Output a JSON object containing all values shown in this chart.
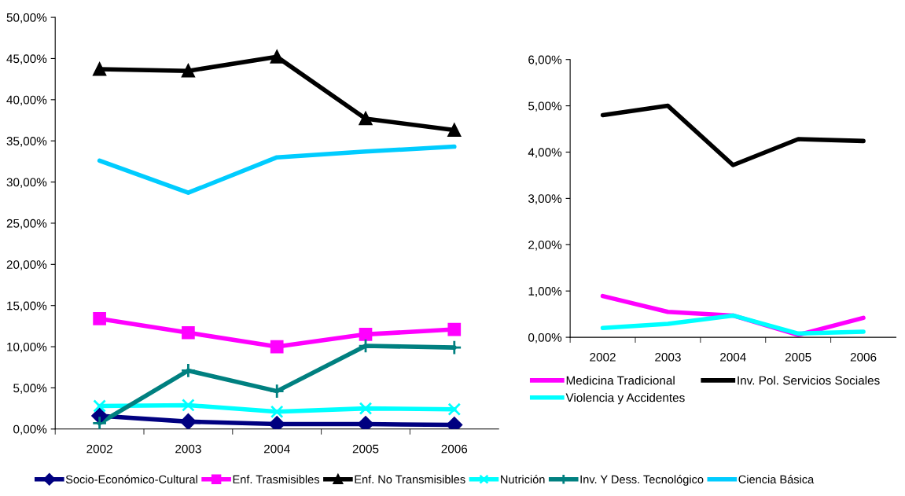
{
  "chart_data": [
    {
      "type": "line",
      "categories": [
        "2002",
        "2003",
        "2004",
        "2005",
        "2006"
      ],
      "ylim": [
        0,
        50
      ],
      "yticks": [
        {
          "value": 0,
          "label": "0,00%"
        },
        {
          "value": 5,
          "label": "5,00%"
        },
        {
          "value": 10,
          "label": "10,00%"
        },
        {
          "value": 15,
          "label": "15,00%"
        },
        {
          "value": 20,
          "label": "20,00%"
        },
        {
          "value": 25,
          "label": "25,00%"
        },
        {
          "value": 30,
          "label": "30,00%"
        },
        {
          "value": 35,
          "label": "35,00%"
        },
        {
          "value": 40,
          "label": "40,00%"
        },
        {
          "value": 45,
          "label": "45,00%"
        },
        {
          "value": 50,
          "label": "50,00%"
        }
      ],
      "grid": false,
      "legend": "bottom",
      "series": [
        {
          "name": "Socio-Económico-Cultural",
          "color": "#000080",
          "marker": "diamond",
          "values": [
            1.6,
            0.9,
            0.6,
            0.6,
            0.5
          ]
        },
        {
          "name": "Enf. Trasmisibles",
          "color": "#ff00ff",
          "marker": "square",
          "values": [
            13.4,
            11.7,
            10.0,
            11.5,
            12.1
          ]
        },
        {
          "name": "Enf. No Transmisibles",
          "color": "#000000",
          "marker": "triangle",
          "values": [
            43.7,
            43.5,
            45.2,
            37.7,
            36.3
          ]
        },
        {
          "name": "Nutrición",
          "color": "#00ffff",
          "marker": "cross",
          "values": [
            2.8,
            2.9,
            2.1,
            2.5,
            2.4
          ]
        },
        {
          "name": "Inv. Y Dess. Tecnológico",
          "color": "#008080",
          "marker": "plus",
          "values": [
            0.7,
            7.1,
            4.6,
            10.1,
            9.9
          ]
        },
        {
          "name": "Ciencia Básica",
          "color": "#00ccff",
          "marker": "none",
          "values": [
            32.6,
            28.7,
            33.0,
            33.7,
            34.3
          ]
        }
      ]
    },
    {
      "type": "line",
      "categories": [
        "2002",
        "2003",
        "2004",
        "2005",
        "2006"
      ],
      "ylim": [
        0,
        6
      ],
      "yticks": [
        {
          "value": 0,
          "label": "0,00%"
        },
        {
          "value": 1,
          "label": "1,00%"
        },
        {
          "value": 2,
          "label": "2,00%"
        },
        {
          "value": 3,
          "label": "3,00%"
        },
        {
          "value": 4,
          "label": "4,00%"
        },
        {
          "value": 5,
          "label": "5,00%"
        },
        {
          "value": 6,
          "label": "6,00%"
        }
      ],
      "grid": false,
      "legend": "bottom",
      "series": [
        {
          "name": "Medicina Tradicional",
          "color": "#ff00ff",
          "marker": "none",
          "values": [
            0.89,
            0.55,
            0.47,
            0.05,
            0.42
          ]
        },
        {
          "name": "Inv. Pol. Servicios Sociales",
          "color": "#000000",
          "marker": "none",
          "values": [
            4.8,
            5.0,
            3.72,
            4.28,
            4.24
          ]
        },
        {
          "name": "Violencia y Accidentes",
          "color": "#00ffff",
          "marker": "none",
          "values": [
            0.2,
            0.29,
            0.47,
            0.08,
            0.12
          ]
        }
      ]
    }
  ]
}
